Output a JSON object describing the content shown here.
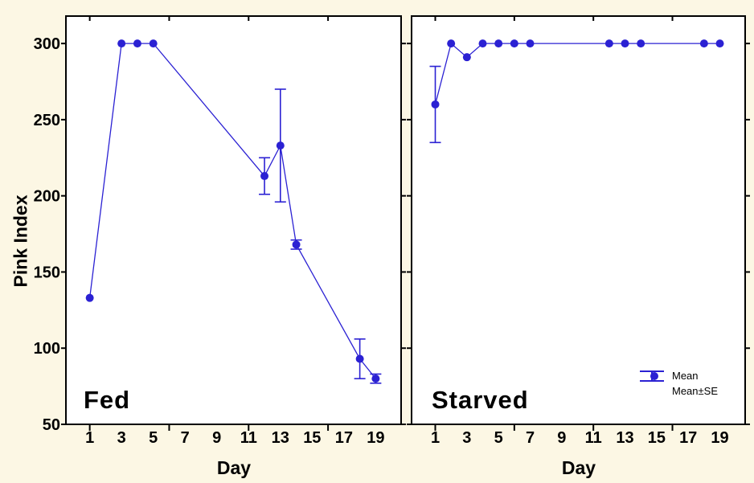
{
  "figure": {
    "background_color": "#FCF7E4",
    "plot_background_color": "#FFFFFF",
    "axis_color": "#000000"
  },
  "chart_data": {
    "type": "line",
    "title": "",
    "xlabel": "Day",
    "ylabel": "Pink Index",
    "xlim": [
      -0.5,
      20.6
    ],
    "ylim": [
      50,
      318
    ],
    "yticks": [
      50,
      100,
      150,
      200,
      250,
      300
    ],
    "xtick_labels": [
      1,
      3,
      5,
      7,
      9,
      11,
      13,
      15,
      17,
      19
    ],
    "x_axis_tick_marks": [
      1,
      6,
      11,
      16
    ],
    "grid": false,
    "series_color": "#2B21D3",
    "panels": [
      {
        "label": "Fed",
        "series_name": "Mean",
        "points": [
          {
            "day": 1,
            "mean": 133,
            "se": 0
          },
          {
            "day": 3,
            "mean": 300,
            "se": 0
          },
          {
            "day": 4,
            "mean": 300,
            "se": 0
          },
          {
            "day": 5,
            "mean": 300,
            "se": 0
          },
          {
            "day": 12,
            "mean": 213,
            "se": 12
          },
          {
            "day": 13,
            "mean": 233,
            "se": 37
          },
          {
            "day": 14,
            "mean": 168,
            "se": 3
          },
          {
            "day": 18,
            "mean": 93,
            "se": 13
          },
          {
            "day": 19,
            "mean": 80,
            "se": 3
          }
        ]
      },
      {
        "label": "Starved",
        "series_name": "Mean",
        "points": [
          {
            "day": 1,
            "mean": 260,
            "se": 25
          },
          {
            "day": 2,
            "mean": 300,
            "se": 0
          },
          {
            "day": 3,
            "mean": 291,
            "se": 0
          },
          {
            "day": 4,
            "mean": 300,
            "se": 0
          },
          {
            "day": 5,
            "mean": 300,
            "se": 0
          },
          {
            "day": 6,
            "mean": 300,
            "se": 0
          },
          {
            "day": 7,
            "mean": 300,
            "se": 0
          },
          {
            "day": 12,
            "mean": 300,
            "se": 0
          },
          {
            "day": 13,
            "mean": 300,
            "se": 0
          },
          {
            "day": 14,
            "mean": 300,
            "se": 0
          },
          {
            "day": 18,
            "mean": 300,
            "se": 0
          },
          {
            "day": 19,
            "mean": 300,
            "se": 0
          }
        ]
      }
    ],
    "legend": {
      "position": "bottom-right",
      "entries": [
        {
          "icon": "mean-dot-icon",
          "label": "Mean"
        },
        {
          "icon": "mean-se-errorbar-icon",
          "label": "Mean±SE"
        }
      ]
    }
  }
}
